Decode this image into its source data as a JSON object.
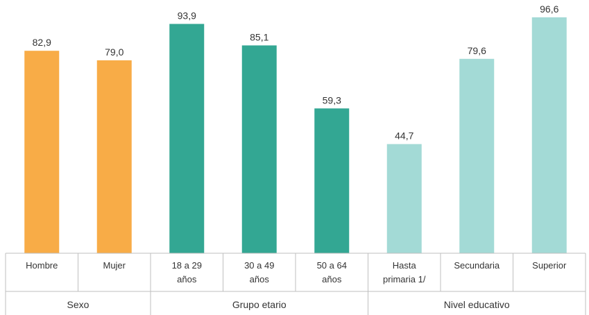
{
  "chart_data": {
    "type": "bar",
    "ylim": [
      0,
      100
    ],
    "grid": false,
    "legend": "none",
    "bars": [
      {
        "group": 0,
        "label": [
          "Hombre"
        ],
        "value": 82.9,
        "display": "82,9",
        "color": "#F8AC47"
      },
      {
        "group": 0,
        "label": [
          "Mujer"
        ],
        "value": 79.0,
        "display": "79,0",
        "color": "#F8AC47"
      },
      {
        "group": 1,
        "label": [
          "18 a 29",
          "años"
        ],
        "value": 93.9,
        "display": "93,9",
        "color": "#33A793"
      },
      {
        "group": 1,
        "label": [
          "30 a 49",
          "años"
        ],
        "value": 85.1,
        "display": "85,1",
        "color": "#33A793"
      },
      {
        "group": 1,
        "label": [
          "50 a 64",
          "años"
        ],
        "value": 59.3,
        "display": "59,3",
        "color": "#33A793"
      },
      {
        "group": 2,
        "label": [
          "Hasta",
          "primaria 1/"
        ],
        "value": 44.7,
        "display": "44,7",
        "color": "#A3DAD6"
      },
      {
        "group": 2,
        "label": [
          "Secundaria"
        ],
        "value": 79.6,
        "display": "79,6",
        "color": "#A3DAD6"
      },
      {
        "group": 2,
        "label": [
          "Superior"
        ],
        "value": 96.6,
        "display": "96,6",
        "color": "#A3DAD6"
      }
    ],
    "groups": [
      {
        "label": "Sexo",
        "size": 2
      },
      {
        "label": "Grupo etario",
        "size": 3
      },
      {
        "label": "Nivel educativo",
        "size": 3
      }
    ]
  }
}
